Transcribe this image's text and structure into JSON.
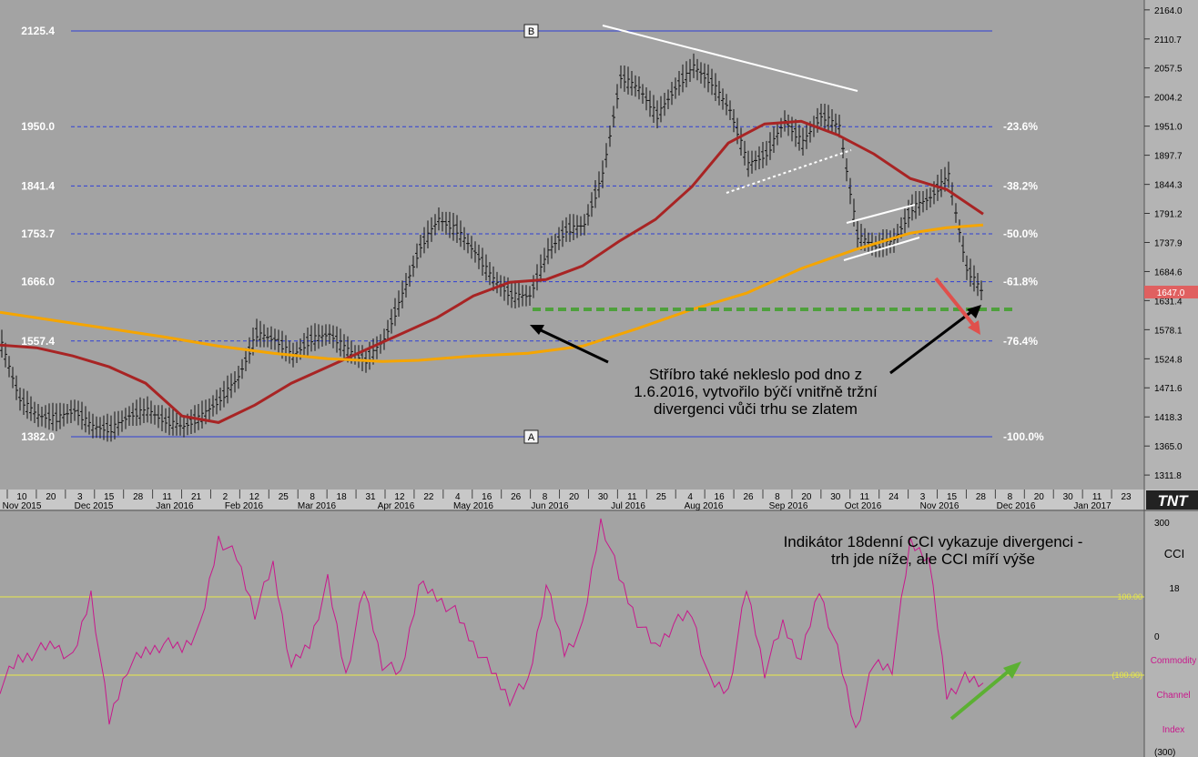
{
  "chart_data": [
    {
      "type": "line",
      "title": "",
      "price_axis_ticks": [
        "2164.0",
        "2110.7",
        "2057.5",
        "2004.2",
        "1951.0",
        "1897.7",
        "1844.3",
        "1791.2",
        "1737.9",
        "1684.6",
        "1631.4",
        "1578.1",
        "1524.8",
        "1471.6",
        "1418.3",
        "1365.0",
        "1311.8"
      ],
      "current_price": {
        "label": "1647.0",
        "value": 1647.0,
        "color": "#e06060"
      },
      "fib_levels": [
        {
          "value": 2125.4,
          "left_label": "2125.4",
          "right_label": ""
        },
        {
          "value": 1950.0,
          "left_label": "1950.0",
          "right_label": "-23.6%"
        },
        {
          "value": 1841.4,
          "left_label": "1841.4",
          "right_label": "-38.2%"
        },
        {
          "value": 1753.7,
          "left_label": "1753.7",
          "right_label": "-50.0%"
        },
        {
          "value": 1666.0,
          "left_label": "1666.0",
          "right_label": "-61.8%"
        },
        {
          "value": 1557.4,
          "left_label": "1557.4",
          "right_label": "-76.4%"
        },
        {
          "value": 1382.0,
          "left_label": "1382.0",
          "right_label": "-100.0%"
        }
      ],
      "point_markers": [
        "B",
        "A"
      ],
      "x_axis_day_ticks": [
        "10",
        "20",
        "3",
        "15",
        "28",
        "11",
        "21",
        "2",
        "12",
        "25",
        "8",
        "18",
        "31",
        "12",
        "22",
        "4",
        "16",
        "26",
        "8",
        "20",
        "30",
        "11",
        "25",
        "4",
        "16",
        "26",
        "8",
        "20",
        "30",
        "11",
        "24",
        "3",
        "15",
        "28",
        "8",
        "20",
        "30",
        "11",
        "23"
      ],
      "x_axis_month_labels": [
        "Nov 2015",
        "Dec 2015",
        "Jan 2016",
        "Feb 2016",
        "Mar 2016",
        "Apr 2016",
        "May 2016",
        "Jun 2016",
        "Jul 2016",
        "Aug 2016",
        "Sep 2016",
        "Oct 2016",
        "Nov 2016",
        "Dec 2016",
        "Jan 2017"
      ],
      "series": [
        {
          "style": "bars",
          "color": "#111111",
          "x": [
            0,
            20,
            40,
            60,
            80,
            100,
            120,
            140,
            160,
            180,
            200,
            220,
            240,
            260,
            280,
            300,
            320,
            340,
            360,
            380,
            400,
            420,
            440,
            460,
            480,
            500,
            520,
            540,
            560,
            580,
            600,
            620,
            640,
            660,
            680,
            700,
            720,
            740,
            760,
            780,
            800,
            820,
            840,
            860,
            880,
            900,
            920,
            940,
            960,
            980,
            1000,
            1020,
            1040,
            1060,
            1080
          ],
          "values": [
            1550,
            1450,
            1420,
            1415,
            1430,
            1400,
            1395,
            1420,
            1430,
            1410,
            1400,
            1420,
            1450,
            1490,
            1570,
            1560,
            1530,
            1560,
            1570,
            1540,
            1520,
            1560,
            1640,
            1730,
            1780,
            1760,
            1720,
            1670,
            1640,
            1640,
            1720,
            1760,
            1770,
            1860,
            2040,
            2020,
            1970,
            2020,
            2060,
            2030,
            1980,
            1880,
            1900,
            1960,
            1920,
            1970,
            1950,
            1750,
            1730,
            1740,
            1800,
            1820,
            1860,
            1690,
            1640
          ]
        },
        {
          "style": "line",
          "color": "#a82424",
          "x": [
            0,
            40,
            80,
            120,
            160,
            200,
            240,
            280,
            320,
            360,
            400,
            440,
            480,
            520,
            560,
            600,
            640,
            680,
            720,
            760,
            800,
            840,
            880,
            920,
            960,
            1000,
            1040,
            1080
          ],
          "values": [
            1550,
            1545,
            1530,
            1510,
            1480,
            1420,
            1408,
            1440,
            1480,
            1510,
            1540,
            1570,
            1600,
            1640,
            1665,
            1670,
            1695,
            1740,
            1780,
            1840,
            1920,
            1955,
            1960,
            1935,
            1900,
            1855,
            1835,
            1790
          ]
        },
        {
          "style": "line",
          "color": "#f5a500",
          "x": [
            0,
            60,
            120,
            180,
            240,
            300,
            360,
            420,
            460,
            520,
            580,
            640,
            700,
            760,
            820,
            880,
            940,
            1000,
            1040,
            1080
          ],
          "values": [
            1610,
            1595,
            1580,
            1565,
            1548,
            1535,
            1525,
            1520,
            1522,
            1530,
            1535,
            1548,
            1580,
            1615,
            1645,
            1690,
            1725,
            1755,
            1765,
            1770
          ]
        }
      ],
      "annotations": [
        {
          "text": "Stříbro také nekleslo pod dno z",
          "color": "#000000"
        },
        {
          "text": "1.6.2016, vytvořilo býčí vnitřně tržní",
          "color": "#000000"
        },
        {
          "text": "divergenci vůči trhu se zlatem",
          "color": "#000000"
        }
      ],
      "ylim": [
        1300,
        2170
      ]
    },
    {
      "type": "line",
      "title": "CCI",
      "period": "18",
      "side_labels": [
        "Commodity",
        "Channel",
        "Index"
      ],
      "axis_ticks": [
        "300",
        "0",
        "(300)"
      ],
      "levels": [
        {
          "value": 100,
          "label": "100.00"
        },
        {
          "value": -100,
          "label": "(100.00)"
        }
      ],
      "annotations": [
        {
          "text": "Indikátor 18denní CCI vykazuje divergenci -",
          "color": "#000000"
        },
        {
          "text": "trh jde níže, ale CCI míří výše",
          "color": "#000000"
        }
      ],
      "series": [
        {
          "color": "#c8188c",
          "x": [
            0,
            20,
            40,
            60,
            80,
            100,
            120,
            140,
            160,
            180,
            200,
            220,
            240,
            260,
            280,
            300,
            320,
            340,
            360,
            380,
            400,
            420,
            440,
            460,
            480,
            500,
            520,
            540,
            560,
            580,
            600,
            620,
            640,
            660,
            680,
            700,
            720,
            740,
            760,
            780,
            800,
            820,
            840,
            860,
            880,
            900,
            920,
            940,
            960,
            980,
            1000,
            1020,
            1040,
            1060,
            1080
          ],
          "values": [
            -130,
            -60,
            -40,
            -20,
            -60,
            110,
            -220,
            -80,
            -40,
            -20,
            -30,
            20,
            250,
            200,
            60,
            180,
            -80,
            -20,
            140,
            -100,
            120,
            -70,
            -100,
            130,
            100,
            60,
            -20,
            -90,
            -160,
            -120,
            130,
            -40,
            20,
            300,
            150,
            40,
            -30,
            30,
            60,
            -120,
            -140,
            120,
            -90,
            30,
            -60,
            120,
            -40,
            -240,
            -70,
            -80,
            240,
            200,
            -150,
            -110,
            -120
          ]
        }
      ],
      "ylim": [
        -300,
        300
      ]
    }
  ]
}
